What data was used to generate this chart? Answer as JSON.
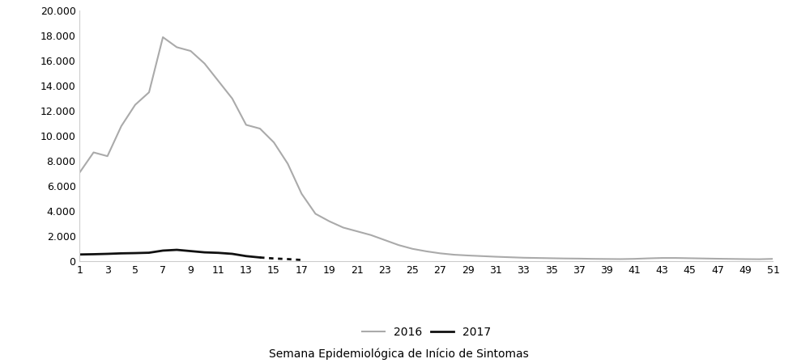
{
  "weeks": [
    1,
    2,
    3,
    4,
    5,
    6,
    7,
    8,
    9,
    10,
    11,
    12,
    13,
    14,
    15,
    16,
    17,
    18,
    19,
    20,
    21,
    22,
    23,
    24,
    25,
    26,
    27,
    28,
    29,
    30,
    31,
    32,
    33,
    34,
    35,
    36,
    37,
    38,
    39,
    40,
    41,
    42,
    43,
    44,
    45,
    46,
    47,
    48,
    49,
    50,
    51
  ],
  "data_2016": [
    7100,
    8700,
    8400,
    10800,
    12500,
    13500,
    17900,
    17100,
    16800,
    15800,
    14400,
    13000,
    10900,
    10600,
    9500,
    7800,
    5400,
    3800,
    3200,
    2700,
    2400,
    2100,
    1700,
    1300,
    1000,
    800,
    640,
    530,
    470,
    420,
    370,
    330,
    290,
    270,
    250,
    230,
    220,
    200,
    190,
    180,
    200,
    240,
    270,
    270,
    250,
    230,
    210,
    195,
    180,
    170,
    200
  ],
  "data_2017_solid": [
    550,
    570,
    600,
    640,
    660,
    690,
    860,
    920,
    820,
    720,
    680,
    600,
    420,
    310,
    null,
    null,
    null,
    null,
    null,
    null,
    null,
    null,
    null,
    null,
    null,
    null,
    null,
    null,
    null,
    null,
    null,
    null,
    null,
    null,
    null,
    null,
    null,
    null,
    null,
    null,
    null,
    null,
    null,
    null,
    null,
    null,
    null,
    null,
    null,
    null,
    null
  ],
  "data_2017_dotted": [
    null,
    null,
    null,
    null,
    null,
    null,
    null,
    null,
    null,
    null,
    null,
    null,
    null,
    310,
    230,
    180,
    110,
    null,
    null,
    null,
    null,
    null,
    null,
    null,
    null,
    null,
    null,
    null,
    null,
    null,
    null,
    null,
    null,
    null,
    null,
    null,
    null,
    null,
    null,
    null,
    null,
    null,
    null,
    null,
    null,
    null,
    null,
    null,
    null,
    null,
    null
  ],
  "color_2016": "#aaaaaa",
  "color_2017": "#111111",
  "ylim": [
    0,
    20000
  ],
  "yticks": [
    0,
    2000,
    4000,
    6000,
    8000,
    10000,
    12000,
    14000,
    16000,
    18000,
    20000
  ],
  "xtick_labels": [
    "1",
    "3",
    "5",
    "7",
    "9",
    "11",
    "13",
    "15",
    "17",
    "19",
    "21",
    "23",
    "25",
    "27",
    "29",
    "31",
    "33",
    "35",
    "37",
    "39",
    "41",
    "43",
    "45",
    "47",
    "49",
    "51"
  ],
  "xtick_positions": [
    1,
    3,
    5,
    7,
    9,
    11,
    13,
    15,
    17,
    19,
    21,
    23,
    25,
    27,
    29,
    31,
    33,
    35,
    37,
    39,
    41,
    43,
    45,
    47,
    49,
    51
  ],
  "xlabel": "Semana Epidemiológica de Início de Sintomas",
  "legend_2016": "2016",
  "legend_2017": "2017",
  "background_color": "#ffffff",
  "linewidth_2016": 1.5,
  "linewidth_2017": 2.0,
  "fig_width": 9.84,
  "fig_height": 4.49,
  "dpi": 100
}
